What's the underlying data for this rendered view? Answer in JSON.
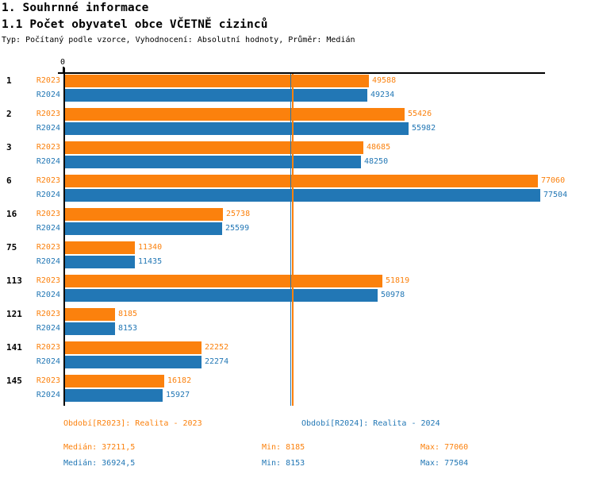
{
  "page": {
    "title": "1. Souhrnné informace",
    "subtitle": "1.1 Počet obyvatel obce VČETNĚ cizinců",
    "meta_line": "Typ: Počítaný podle vzorce, Vyhodnocení: Absolutní hodnoty, Průměr: Medián"
  },
  "colors": {
    "r2023_orange": "#fb810d",
    "r2024_blue": "#2277b5",
    "axis_black": "#000000"
  },
  "chart_data": {
    "type": "bar",
    "orientation": "horizontal",
    "title": "1.1 Počet obyvatel obce VČETNĚ cizinců",
    "zero_tick_label": "0",
    "categories": [
      "1",
      "2",
      "3",
      "6",
      "16",
      "75",
      "113",
      "121",
      "141",
      "145"
    ],
    "series": [
      {
        "name": "R2023",
        "color": "#fb810d",
        "values": [
          49588,
          55426,
          48685,
          77060,
          25738,
          11340,
          51819,
          8185,
          22252,
          16182
        ],
        "median": 37211.5,
        "min": 8185,
        "max": 77060
      },
      {
        "name": "R2024",
        "color": "#2277b5",
        "values": [
          49234,
          55982,
          48250,
          77504,
          25599,
          11435,
          50978,
          8153,
          22274,
          15927
        ],
        "median": 36924.5,
        "min": 8153,
        "max": 77504
      }
    ],
    "xlim": [
      0,
      77504
    ],
    "median_lines": true,
    "grid": false,
    "legend_position": "bottom"
  },
  "legend": {
    "r2023": "Období[R2023]: Realita - 2023",
    "r2024": "Období[R2024]: Realita - 2024"
  },
  "stats": {
    "r2023": {
      "median": "Medián: 37211,5",
      "min": "Min: 8185",
      "max": "Max: 77060"
    },
    "r2024": {
      "median": "Medián: 36924,5",
      "min": "Min: 8153",
      "max": "Max: 77504"
    }
  }
}
